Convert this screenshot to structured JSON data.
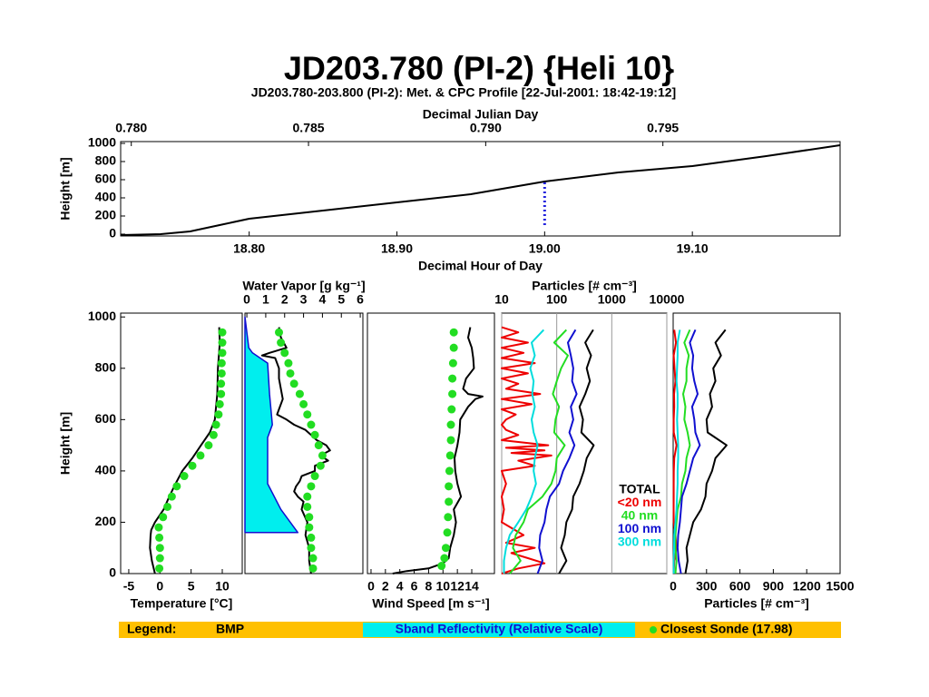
{
  "title": "JD203.780 (PI-2) {Heli 10}",
  "chart_data": [
    {
      "type": "line",
      "title": "JD203.780-203.800 (PI-2): Met. & CPC Profile [22-Jul-2001: 18:42-19:12]",
      "xlabel": "Decimal Hour of Day",
      "x2label": "Decimal Julian Day",
      "ylabel": "Height [m]",
      "xlim": [
        18.713,
        19.2
      ],
      "xticks": [
        {
          "value": 18.8,
          "label": "18.80"
        },
        {
          "value": 18.9,
          "label": "18.90"
        },
        {
          "value": 19.0,
          "label": "19.00"
        },
        {
          "value": 19.1,
          "label": "19.10"
        }
      ],
      "x2lim": [
        0.7797,
        0.8
      ],
      "x2ticks": [
        {
          "value": 0.78,
          "label": "0.780"
        },
        {
          "value": 0.785,
          "label": "0.785"
        },
        {
          "value": 0.79,
          "label": "0.790"
        },
        {
          "value": 0.795,
          "label": "0.795"
        }
      ],
      "ylim": [
        -20,
        1020
      ],
      "yticks": [
        0,
        200,
        400,
        600,
        800,
        1000
      ],
      "series": [
        {
          "style": "line",
          "color": "#000000",
          "x": [
            18.713,
            18.74,
            18.76,
            18.78,
            18.8,
            18.85,
            18.9,
            18.95,
            19.0,
            19.05,
            19.1,
            19.15,
            19.2
          ],
          "values": [
            -10,
            0,
            30,
            100,
            170,
            260,
            350,
            440,
            580,
            680,
            750,
            860,
            980
          ]
        }
      ],
      "marker": {
        "x": 19.0,
        "y": [
          100,
          600
        ],
        "color": "#2222dd"
      }
    },
    {
      "type": "profile",
      "xlabel": "Temperature [°C]",
      "ylabel": "Height [m]",
      "xaxis": "bottom",
      "xlim": [
        -6.3,
        13.2
      ],
      "xticks": [
        -5,
        0,
        5,
        10
      ],
      "ylim": [
        0,
        1015
      ],
      "yticks": [
        0,
        200,
        400,
        600,
        800,
        1000
      ],
      "series": [
        {
          "style": "line",
          "color": "#000000",
          "heights": [
            960,
            900,
            800,
            700,
            600,
            550,
            500,
            450,
            400,
            350,
            300,
            250,
            200,
            170,
            150,
            100,
            50,
            0
          ],
          "values": [
            9.5,
            9.6,
            9.3,
            9.2,
            8.8,
            8,
            6.6,
            5.2,
            3.6,
            2.5,
            1.5,
            0.6,
            -0.8,
            -1.4,
            -1.5,
            -1.6,
            -1.3,
            -0.8
          ]
        },
        {
          "style": "dots",
          "color": "#22dd22",
          "heights": [
            940,
            900,
            860,
            820,
            780,
            740,
            700,
            660,
            620,
            580,
            540,
            500,
            460,
            420,
            380,
            340,
            300,
            260,
            220,
            180,
            140,
            100,
            60,
            20
          ],
          "values": [
            10,
            10,
            10,
            9.9,
            9.9,
            9.8,
            9.8,
            9.6,
            9.4,
            9,
            8.6,
            7.8,
            6.5,
            5.2,
            3.9,
            2.7,
            1.9,
            1.2,
            0.5,
            -0.2,
            -0.1,
            0,
            0,
            -0.1
          ]
        }
      ]
    },
    {
      "type": "profile",
      "xlabel": "Water Vapor [g kg⁻¹]",
      "xaxis": "top",
      "xlim": [
        -0.1,
        6.14
      ],
      "xticks": [
        0,
        1,
        2,
        3,
        4,
        5,
        6
      ],
      "ylim": [
        0,
        1015
      ],
      "series": [
        {
          "style": "area",
          "color": "#1010d0",
          "fill": "#00eeee",
          "heights": [
            1000,
            880,
            860,
            820,
            700,
            580,
            530,
            350,
            250,
            160,
            160
          ],
          "values": [
            -0.1,
            0.1,
            0.3,
            1.1,
            1.2,
            1.35,
            1.1,
            1.1,
            1.8,
            2.7,
            -0.1
          ]
        },
        {
          "style": "line",
          "color": "#000000",
          "heights": [
            960,
            920,
            880,
            860,
            850,
            840,
            800,
            760,
            720,
            680,
            640,
            620,
            600,
            580,
            560,
            540,
            520,
            500,
            480,
            460,
            440,
            420,
            400,
            380,
            360,
            340,
            320,
            300,
            280,
            250,
            200,
            150,
            100,
            50,
            0
          ],
          "values": [
            1.7,
            1.8,
            2.1,
            1.2,
            0.8,
            1.5,
            1.7,
            1.7,
            1.8,
            1.9,
            1.7,
            1.6,
            2.1,
            2.5,
            3.1,
            3.4,
            3.7,
            4.2,
            4.4,
            3.9,
            4.3,
            3.6,
            3.6,
            2.9,
            2.8,
            2.6,
            2.5,
            2.7,
            3.0,
            2.9,
            3.2,
            3.1,
            3.3,
            3.3,
            3.4
          ]
        },
        {
          "style": "dots",
          "color": "#22dd22",
          "heights": [
            940,
            900,
            860,
            820,
            780,
            740,
            700,
            660,
            620,
            580,
            540,
            500,
            460,
            420,
            380,
            340,
            300,
            260,
            220,
            180,
            140,
            100,
            60,
            20
          ],
          "values": [
            1.7,
            1.8,
            2.0,
            2.2,
            2.3,
            2.5,
            2.8,
            3.0,
            3.2,
            3.4,
            3.6,
            3.8,
            4.0,
            3.9,
            3.6,
            3.4,
            3.2,
            3.2,
            3.3,
            3.3,
            3.4,
            3.4,
            3.5,
            3.5
          ]
        }
      ]
    },
    {
      "type": "profile",
      "xlabel": "Wind Speed [m s⁻¹]",
      "xaxis": "bottom",
      "xlim": [
        -0.5,
        17.15
      ],
      "xticks": [
        0,
        2,
        4,
        6,
        8,
        10,
        12,
        14
      ],
      "ylim": [
        0,
        1015
      ],
      "series": [
        {
          "style": "line",
          "color": "#000000",
          "heights": [
            960,
            920,
            880,
            840,
            800,
            760,
            720,
            700,
            690,
            680,
            650,
            600,
            550,
            500,
            450,
            400,
            350,
            300,
            250,
            200,
            150,
            100,
            60,
            40,
            20,
            10,
            0
          ],
          "values": [
            13.8,
            13.5,
            14,
            14.2,
            14.3,
            13.2,
            12.8,
            13.5,
            15.5,
            14.5,
            13.5,
            12.4,
            12.3,
            12,
            11.6,
            11.7,
            12,
            12.5,
            11.5,
            11.8,
            11.5,
            11,
            10.8,
            10,
            8,
            5,
            3
          ]
        },
        {
          "style": "dots",
          "color": "#22dd22",
          "heights": [
            940,
            880,
            820,
            760,
            700,
            640,
            580,
            520,
            460,
            400,
            340,
            280,
            220,
            160,
            100,
            60,
            30
          ],
          "values": [
            11.5,
            11.5,
            11.4,
            11.3,
            11.3,
            11.2,
            11.1,
            11.1,
            11,
            10.9,
            10.8,
            10.8,
            10.7,
            10.6,
            10.4,
            10.2,
            9.8
          ]
        }
      ]
    },
    {
      "type": "profile",
      "xlabel": "Particles [# cm⁻³]",
      "xaxis": "top",
      "xscale": "log",
      "grid": true,
      "legend": "lower right",
      "xlim": [
        10,
        10000
      ],
      "xticks": [
        10,
        100,
        1000,
        10000
      ],
      "ylim": [
        0,
        1015
      ],
      "series": [
        {
          "name": "TOTAL",
          "style": "line",
          "color": "#000000",
          "heights": [
            950,
            900,
            850,
            800,
            750,
            700,
            650,
            600,
            550,
            500,
            450,
            400,
            350,
            300,
            250,
            200,
            150,
            100,
            50,
            0
          ],
          "values": [
            460,
            330,
            420,
            350,
            400,
            330,
            260,
            300,
            280,
            470,
            350,
            310,
            260,
            200,
            190,
            150,
            140,
            120,
            150,
            110
          ]
        },
        {
          "name": "<20 nm",
          "style": "line",
          "color": "#ee0000",
          "heights": [
            960,
            940,
            920,
            900,
            880,
            860,
            840,
            820,
            800,
            780,
            760,
            740,
            720,
            700,
            680,
            660,
            640,
            620,
            600,
            580,
            560,
            540,
            520,
            500,
            490,
            480,
            470,
            460,
            440,
            420,
            400,
            350,
            300,
            250,
            200,
            150,
            120,
            100,
            80,
            60,
            40,
            20,
            0
          ],
          "values": [
            10,
            20,
            10,
            30,
            10,
            25,
            10,
            40,
            10,
            30,
            10,
            20,
            12,
            50,
            10,
            35,
            10,
            18,
            12,
            10,
            12,
            20,
            10,
            70,
            12,
            60,
            15,
            80,
            20,
            40,
            10,
            12,
            10,
            11,
            10,
            25,
            12,
            40,
            15,
            30,
            60,
            20,
            10
          ]
        },
        {
          "name": "40 nm",
          "style": "line",
          "color": "#22dd22",
          "heights": [
            950,
            900,
            850,
            800,
            750,
            700,
            650,
            600,
            550,
            500,
            450,
            400,
            350,
            300,
            250,
            200,
            150,
            100,
            50,
            0
          ],
          "values": [
            150,
            90,
            160,
            120,
            100,
            85,
            110,
            95,
            90,
            140,
            100,
            95,
            80,
            55,
            30,
            25,
            18,
            16,
            22,
            14
          ]
        },
        {
          "name": "100 nm",
          "style": "line",
          "color": "#1010d0",
          "heights": [
            950,
            900,
            850,
            800,
            750,
            700,
            650,
            600,
            550,
            500,
            450,
            400,
            350,
            300,
            250,
            200,
            150,
            100,
            50,
            0
          ],
          "values": [
            220,
            160,
            180,
            200,
            190,
            230,
            180,
            200,
            170,
            210,
            170,
            130,
            110,
            75,
            65,
            60,
            50,
            48,
            55,
            45
          ]
        },
        {
          "name": "300 nm",
          "style": "line",
          "color": "#00dddd",
          "heights": [
            950,
            900,
            850,
            800,
            750,
            700,
            650,
            600,
            550,
            500,
            450,
            400,
            350,
            300,
            250,
            200,
            150,
            100,
            50,
            0
          ],
          "values": [
            58,
            35,
            40,
            33,
            38,
            36,
            40,
            35,
            38,
            45,
            40,
            38,
            42,
            35,
            28,
            20,
            14,
            12,
            11,
            11
          ]
        }
      ]
    },
    {
      "type": "profile",
      "xlabel": "Particles [# cm⁻³]",
      "xaxis": "bottom",
      "xlim": [
        0,
        1500
      ],
      "xticks": [
        0,
        300,
        600,
        900,
        1200,
        1500
      ],
      "ylim": [
        0,
        1015
      ],
      "series": [
        {
          "style": "line",
          "color": "#000000",
          "heights": [
            950,
            900,
            850,
            800,
            750,
            700,
            650,
            600,
            550,
            500,
            450,
            400,
            350,
            300,
            250,
            200,
            150,
            100,
            50,
            0
          ],
          "values": [
            470,
            380,
            430,
            360,
            380,
            330,
            350,
            300,
            310,
            480,
            380,
            350,
            300,
            290,
            250,
            180,
            150,
            120,
            130,
            110
          ]
        },
        {
          "style": "line",
          "color": "#ee0000",
          "heights": [
            950,
            900,
            850,
            800,
            750,
            700,
            650,
            600,
            550,
            500,
            450,
            400,
            350,
            300,
            250,
            200,
            150,
            100,
            50,
            0
          ],
          "values": [
            10,
            25,
            5,
            12,
            20,
            8,
            10,
            5,
            6,
            30,
            10,
            6,
            5,
            5,
            4,
            6,
            20,
            30,
            10,
            5
          ]
        },
        {
          "style": "line",
          "color": "#22dd22",
          "heights": [
            950,
            900,
            850,
            800,
            750,
            700,
            650,
            600,
            550,
            500,
            450,
            400,
            350,
            300,
            250,
            200,
            150,
            100,
            50,
            0
          ],
          "values": [
            150,
            100,
            140,
            120,
            120,
            90,
            110,
            100,
            130,
            150,
            120,
            110,
            80,
            70,
            40,
            30,
            20,
            20,
            30,
            20
          ]
        },
        {
          "style": "line",
          "color": "#1010d0",
          "heights": [
            950,
            900,
            850,
            800,
            750,
            700,
            650,
            600,
            550,
            500,
            450,
            400,
            350,
            300,
            250,
            200,
            150,
            100,
            50,
            0
          ],
          "values": [
            200,
            150,
            180,
            170,
            190,
            220,
            170,
            190,
            200,
            240,
            180,
            150,
            120,
            80,
            70,
            60,
            45,
            40,
            50,
            70
          ]
        },
        {
          "style": "line",
          "color": "#00dddd",
          "heights": [
            950,
            900,
            850,
            800,
            750,
            700,
            650,
            600,
            550,
            500,
            450,
            400,
            350,
            300,
            250,
            200,
            150,
            100,
            50,
            0
          ],
          "values": [
            60,
            40,
            40,
            35,
            30,
            40,
            40,
            35,
            40,
            45,
            45,
            40,
            40,
            35,
            30,
            20,
            10,
            8,
            5,
            5
          ]
        }
      ]
    }
  ],
  "legend": {
    "label": "Legend:",
    "color": "#ffc000",
    "items": [
      {
        "name": "BMP",
        "color": "#000000"
      },
      {
        "name": "Sband Reflectivity (Relative Scale)",
        "color": "#1010d0",
        "background": "#00eeee"
      },
      {
        "name": "Closest Sonde (17.98)",
        "color": "#000000",
        "marker": "#22dd22"
      }
    ]
  }
}
